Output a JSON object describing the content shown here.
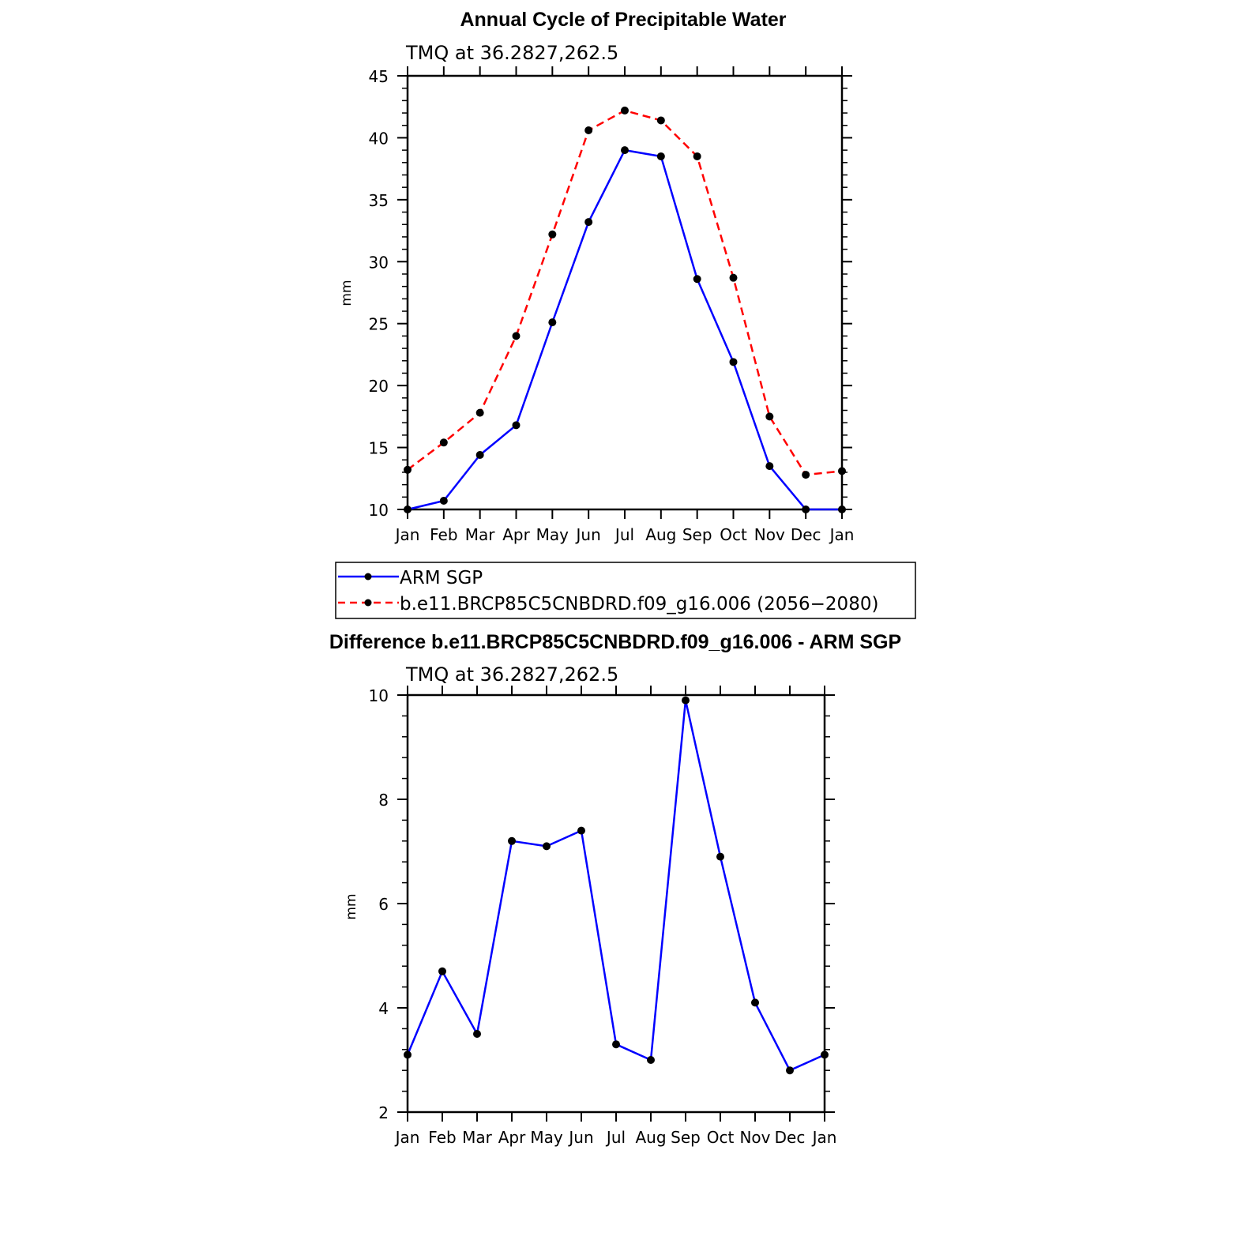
{
  "chart_data": [
    {
      "type": "line",
      "title": "Annual Cycle of Precipitable Water",
      "subtitle": "TMQ at 36.2827,262.5",
      "ylabel": "mm",
      "xlabel": "",
      "categories": [
        "Jan",
        "Feb",
        "Mar",
        "Apr",
        "May",
        "Jun",
        "Jul",
        "Aug",
        "Sep",
        "Oct",
        "Nov",
        "Dec",
        "Jan"
      ],
      "ylim": [
        10,
        45
      ],
      "yticks": [
        10,
        15,
        20,
        25,
        30,
        35,
        40,
        45
      ],
      "legend_position": "bottom",
      "grid": false,
      "series": [
        {
          "name": "ARM SGP",
          "color": "#0000ff",
          "dash": "solid",
          "values": [
            10.0,
            10.7,
            14.4,
            16.8,
            25.1,
            33.2,
            39.0,
            38.5,
            28.6,
            21.9,
            13.5,
            10.0,
            10.0
          ]
        },
        {
          "name": "b.e11.BRCP85C5CNBDRD.f09_g16.006 (2056−2080)",
          "color": "#ff0000",
          "dash": "dashed",
          "values": [
            13.2,
            15.4,
            17.8,
            24.0,
            32.2,
            40.6,
            42.2,
            41.4,
            38.5,
            28.7,
            17.5,
            12.8,
            13.1
          ]
        }
      ]
    },
    {
      "type": "line",
      "title": "Difference b.e11.BRCP85C5CNBDRD.f09_g16.006 - ARM SGP",
      "subtitle": "TMQ at 36.2827,262.5",
      "ylabel": "mm",
      "xlabel": "",
      "categories": [
        "Jan",
        "Feb",
        "Mar",
        "Apr",
        "May",
        "Jun",
        "Jul",
        "Aug",
        "Sep",
        "Oct",
        "Nov",
        "Dec",
        "Jan"
      ],
      "ylim": [
        2,
        10
      ],
      "yticks": [
        2,
        4,
        6,
        8,
        10
      ],
      "grid": false,
      "series": [
        {
          "color": "#0000ff",
          "dash": "solid",
          "values": [
            3.1,
            4.7,
            3.5,
            7.2,
            7.1,
            7.4,
            3.3,
            3.0,
            9.9,
            6.9,
            4.1,
            2.8,
            3.1
          ]
        }
      ]
    }
  ]
}
